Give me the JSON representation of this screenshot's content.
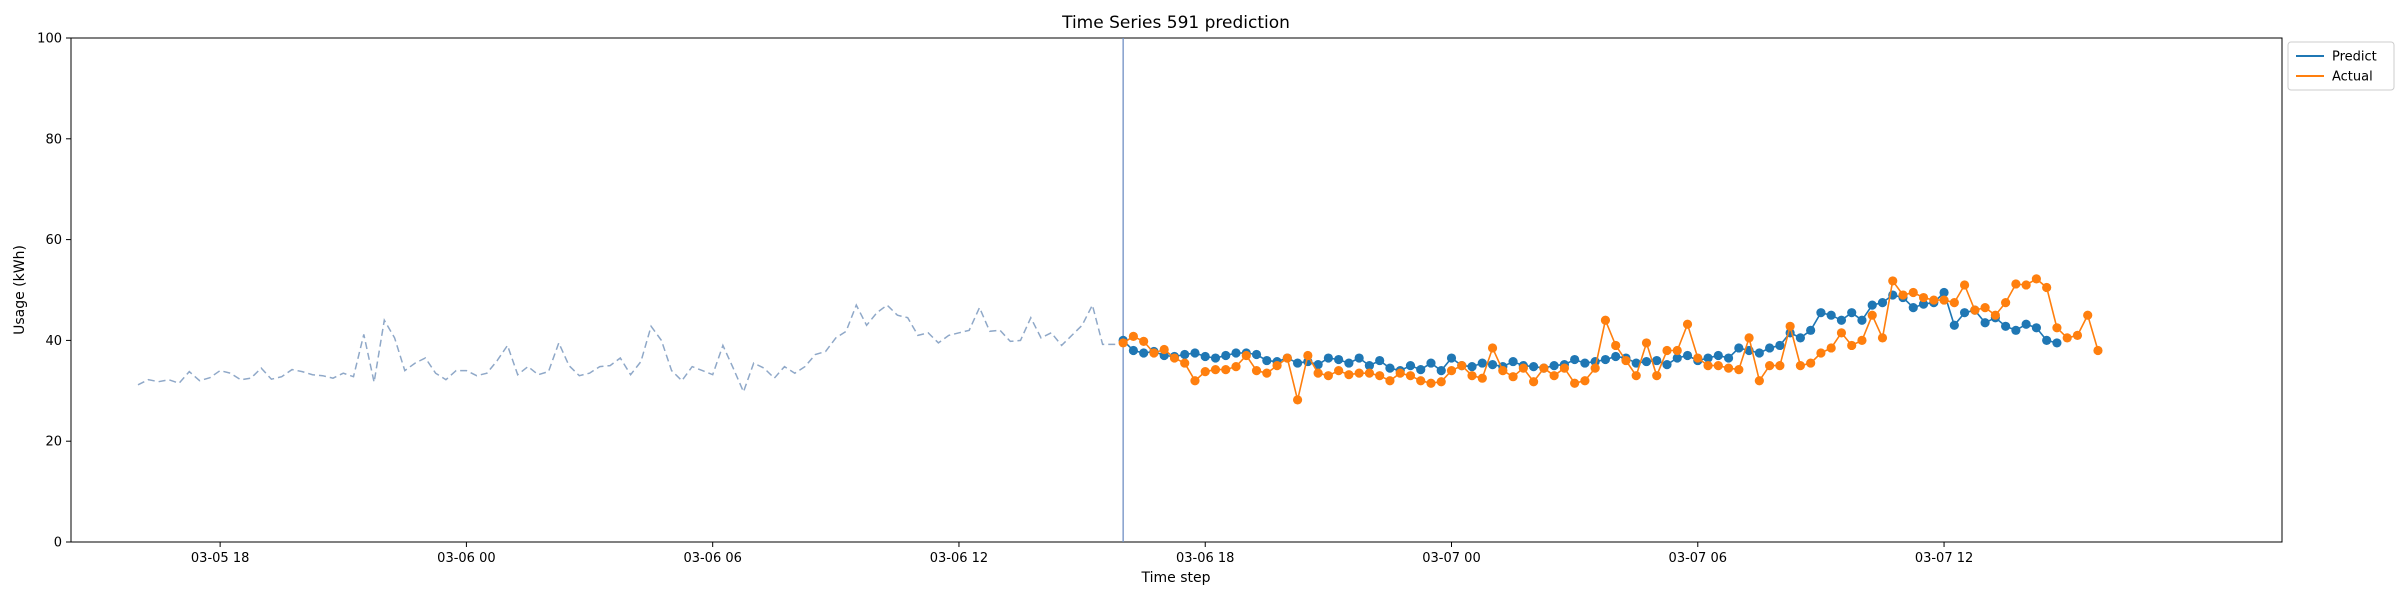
{
  "chart_data": {
    "type": "line",
    "title": "Time Series 591 prediction",
    "xlabel": "Time step",
    "ylabel": "Usage (kWh)",
    "ylim": [
      0,
      100
    ],
    "yticks": [
      0,
      20,
      40,
      60,
      80,
      100
    ],
    "xlim": [
      "2025-03-05 14:22",
      "2025-03-07 20:14"
    ],
    "xticks": [
      {
        "t": "2025-03-05 18:00",
        "label": "03-05 18"
      },
      {
        "t": "2025-03-06 00:00",
        "label": "03-06 00"
      },
      {
        "t": "2025-03-06 06:00",
        "label": "03-06 06"
      },
      {
        "t": "2025-03-06 12:00",
        "label": "03-06 12"
      },
      {
        "t": "2025-03-06 18:00",
        "label": "03-06 18"
      },
      {
        "t": "2025-03-07 00:00",
        "label": "03-07 00"
      },
      {
        "t": "2025-03-07 06:00",
        "label": "03-07 06"
      },
      {
        "t": "2025-03-07 12:00",
        "label": "03-07 12"
      }
    ],
    "grid": false,
    "legend_position": "top-right-outside",
    "forecast_start": "2025-03-06 16:00",
    "series": [
      {
        "name": "",
        "style": "dashed",
        "color": "#8fa8c8",
        "start": "2025-03-05 16:00",
        "step_minutes": 15,
        "values": [
          31.2,
          32.2,
          31.8,
          32.2,
          31.5,
          33.8,
          32.0,
          32.6,
          34.0,
          33.5,
          32.2,
          32.5,
          34.5,
          32.3,
          32.8,
          34.2,
          33.8,
          33.2,
          33.0,
          32.5,
          33.5,
          32.8,
          41.2,
          31.7,
          44.0,
          40.5,
          34.0,
          35.5,
          36.5,
          33.5,
          32.2,
          34.0,
          34.0,
          33.0,
          33.5,
          36.0,
          39.0,
          33.2,
          34.8,
          33.2,
          33.8,
          39.5,
          35.0,
          33.0,
          33.5,
          34.8,
          35.0,
          36.5,
          33.2,
          35.8,
          42.8,
          40.0,
          34.0,
          32.0,
          34.8,
          34.0,
          33.2,
          39.0,
          34.5,
          29.8,
          35.5,
          34.5,
          32.5,
          34.8,
          33.5,
          34.8,
          37.2,
          37.8,
          40.5,
          41.8,
          47.0,
          43.0,
          45.5,
          47.0,
          45.0,
          44.5,
          41.0,
          41.5,
          39.5,
          41.0,
          41.5,
          42.0,
          46.5,
          41.8,
          42.0,
          39.8,
          40.0,
          44.5,
          40.5,
          41.5,
          39.0,
          41.0,
          43.0,
          47.0,
          39.2,
          39.2,
          39.2
        ]
      },
      {
        "name": "Predict",
        "style": "solid-markers",
        "color": "#1f77b4",
        "start": "2025-03-06 16:00",
        "step_minutes": 15,
        "values": [
          40.0,
          38.0,
          37.5,
          37.8,
          37.0,
          36.8,
          37.2,
          37.5,
          36.8,
          36.5,
          37.0,
          37.5,
          37.5,
          37.2,
          36.0,
          35.8,
          36.5,
          35.5,
          35.8,
          35.2,
          36.5,
          36.2,
          35.5,
          36.5,
          35.0,
          36.0,
          34.5,
          34.0,
          35.0,
          34.2,
          35.5,
          34.0,
          36.5,
          35.0,
          34.8,
          35.5,
          35.2,
          34.8,
          35.8,
          35.0,
          34.8,
          34.5,
          35.0,
          35.2,
          36.2,
          35.5,
          35.8,
          36.2,
          36.8,
          36.5,
          35.5,
          35.8,
          36.0,
          35.2,
          36.5,
          37.0,
          36.0,
          36.5,
          37.0,
          36.5,
          38.5,
          38.0,
          37.5,
          38.5,
          39.0,
          41.5,
          40.5,
          42.0,
          45.5,
          45.0,
          44.0,
          45.5,
          44.0,
          47.0,
          47.5,
          49.0,
          48.5,
          46.5,
          47.2,
          47.5,
          49.5,
          43.0,
          45.5,
          46.0,
          43.5,
          44.5,
          42.8,
          42.0,
          43.2,
          42.5,
          40.0,
          39.5
        ]
      },
      {
        "name": "Actual",
        "style": "solid-markers",
        "color": "#ff7f0e",
        "start": "2025-03-06 16:00",
        "step_minutes": 15,
        "values": [
          39.5,
          40.8,
          39.8,
          37.5,
          38.2,
          36.5,
          35.5,
          32.0,
          33.8,
          34.2,
          34.2,
          34.8,
          37.0,
          34.0,
          33.5,
          35.0,
          36.5,
          28.2,
          37.0,
          33.5,
          33.0,
          34.0,
          33.2,
          33.5,
          33.5,
          33.0,
          32.0,
          33.5,
          33.0,
          32.0,
          31.5,
          31.8,
          34.0,
          35.0,
          33.0,
          32.5,
          38.5,
          34.0,
          32.8,
          34.5,
          31.8,
          34.5,
          33.0,
          34.5,
          31.5,
          32.0,
          34.5,
          44.0,
          39.0,
          36.0,
          33.0,
          39.5,
          33.0,
          38.0,
          38.0,
          43.2,
          36.5,
          35.0,
          35.0,
          34.5,
          34.2,
          40.5,
          32.0,
          35.0,
          35.0,
          42.8,
          35.0,
          35.5,
          37.5,
          38.5,
          41.5,
          39.0,
          40.0,
          45.0,
          40.5,
          51.8,
          49.0,
          49.5,
          48.5,
          48.0,
          48.0,
          47.5,
          51.0,
          46.0,
          46.5,
          45.0,
          47.5,
          51.2,
          51.0,
          52.2,
          50.5,
          42.5,
          40.5,
          41.0,
          45.0,
          38.0
        ]
      }
    ],
    "legend": [
      {
        "label": "Predict",
        "color": "#1f77b4"
      },
      {
        "label": "Actual",
        "color": "#ff7f0e"
      }
    ]
  }
}
